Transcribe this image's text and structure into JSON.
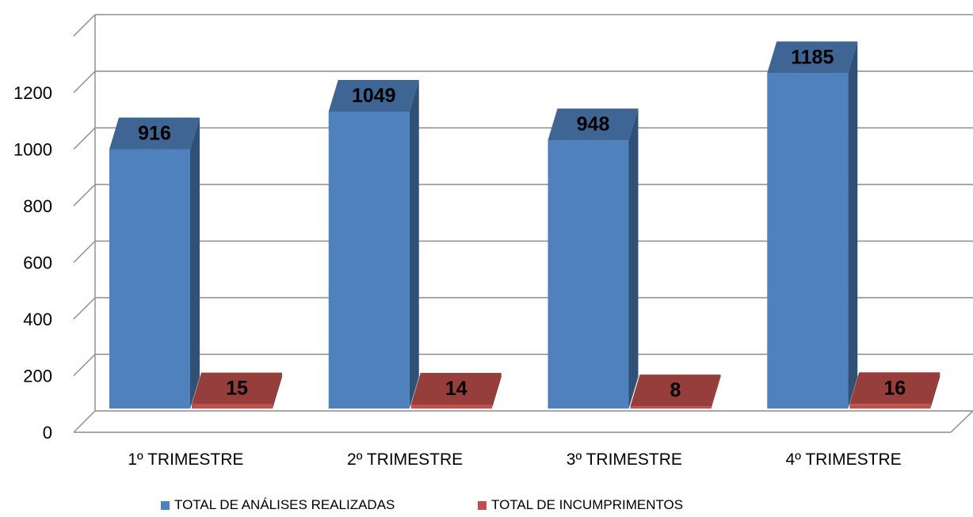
{
  "chart_data": {
    "type": "bar",
    "categories": [
      "1º TRIMESTRE",
      "2º TRIMESTRE",
      "3º TRIMESTRE",
      "4º TRIMESTRE"
    ],
    "series": [
      {
        "name": "TOTAL DE ANÁLISES REALIZADAS",
        "values": [
          916,
          1049,
          948,
          1185
        ],
        "color": "#4F81BD"
      },
      {
        "name": "TOTAL DE INCUMPRIMENTOS",
        "values": [
          15,
          14,
          8,
          16
        ],
        "color": "#C0504D"
      }
    ],
    "y_ticks": [
      "0",
      "200",
      "400",
      "600",
      "800",
      "1000",
      "1200"
    ],
    "ylim": [
      0,
      1400
    ],
    "grid": true,
    "legend_position": "bottom",
    "style": "3d-clustered-column"
  }
}
